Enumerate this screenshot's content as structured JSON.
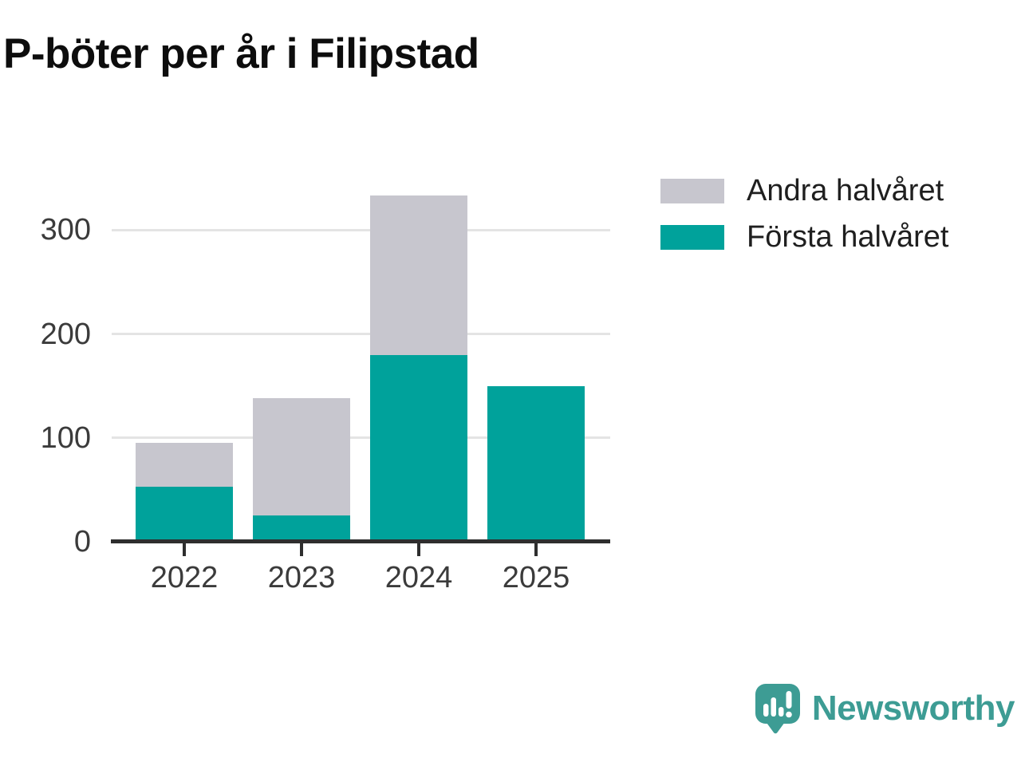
{
  "page": {
    "title": "P-böter per år i Filipstad"
  },
  "colors": {
    "background": "#ffffff",
    "first_half_teal": "#00a29b",
    "second_half_gray": "#c7c6ce",
    "gridline": "#e4e4e4",
    "axis": "#2e2e2e",
    "title_text": "#0d0d0d",
    "tick_text": "#3b3b3b",
    "legend_text": "#1f1f1f",
    "brand_teal": "#3d9c94"
  },
  "chart_data": {
    "type": "bar",
    "stacked": true,
    "title": "P-böter per år i Filipstad",
    "categories": [
      "2022",
      "2023",
      "2024",
      "2025"
    ],
    "series": [
      {
        "name": "Första halvåret",
        "color": "#00a29b",
        "values": [
          53,
          25,
          180,
          150
        ]
      },
      {
        "name": "Andra halvåret",
        "color": "#c7c6ce",
        "values": [
          42,
          113,
          153,
          0
        ]
      }
    ],
    "totals": [
      95,
      138,
      333,
      150
    ],
    "xlabel": "",
    "ylabel": "",
    "yticks": [
      0,
      100,
      200,
      300
    ],
    "ylim": [
      0,
      345
    ],
    "grid": "horizontal-only",
    "legend_position": "top-right",
    "legend": [
      {
        "label": "Andra halvåret",
        "color": "#c7c6ce"
      },
      {
        "label": "Första halvåret",
        "color": "#00a29b"
      }
    ]
  },
  "footer": {
    "brand": "Newsworthy"
  }
}
